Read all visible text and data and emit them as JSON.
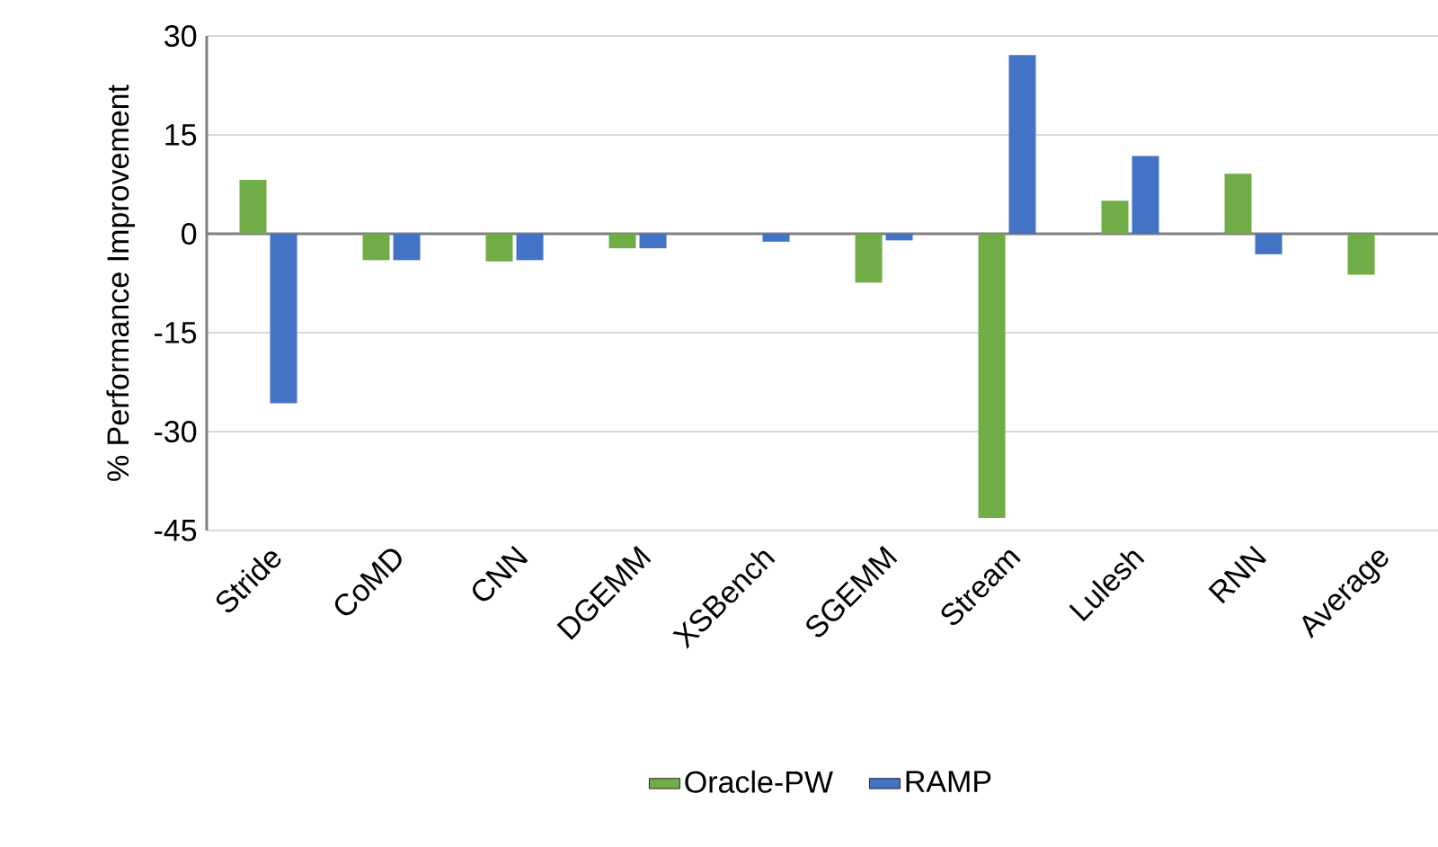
{
  "chart_data": {
    "type": "bar",
    "ylabel": "% Performance Improvement",
    "categories": [
      "Stride",
      "CoMD",
      "CNN",
      "DGEMM",
      "XSBench",
      "SGEMM",
      "Stream",
      "Lulesh",
      "RNN",
      "Average"
    ],
    "series": [
      {
        "name": "Oracle-PW",
        "color": "#70ad47",
        "values": [
          8.2,
          -4.0,
          -4.2,
          -2.2,
          null,
          -7.4,
          -43.1,
          5.0,
          9.1,
          -6.2
        ]
      },
      {
        "name": "RAMP",
        "color": "#4472c4",
        "values": [
          -25.7,
          -4.0,
          -4.0,
          -2.2,
          -1.2,
          -1.0,
          27.1,
          11.8,
          -3.1,
          null
        ]
      }
    ],
    "ylim": [
      -45,
      30
    ],
    "yticks": [
      -45,
      -30,
      -15,
      0,
      15,
      30
    ],
    "grid": "y",
    "legend": "bottom"
  }
}
